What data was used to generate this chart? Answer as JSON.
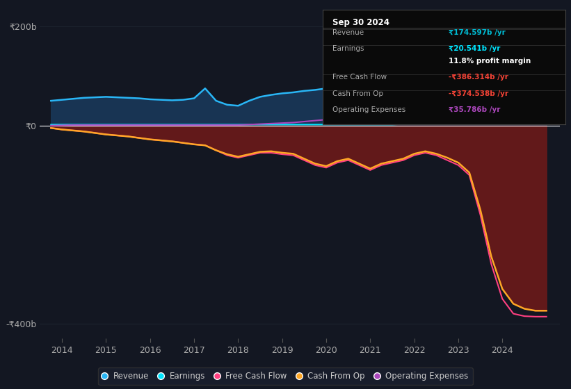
{
  "bg_color": "#131722",
  "plot_bg": "#131722",
  "grid_color": "#1e2530",
  "zero_line_color": "#ffffff",
  "title_box": {
    "date": "Sep 30 2024",
    "rows": [
      {
        "label": "Revenue",
        "value": "₹174.597b /yr",
        "value_color": "#00bcd4"
      },
      {
        "label": "Earnings",
        "value": "₹20.541b /yr",
        "value_color": "#00e5ff"
      },
      {
        "label": "",
        "value": "11.8% profit margin",
        "value_color": "#ffffff"
      },
      {
        "label": "Free Cash Flow",
        "value": "-₹386.314b /yr",
        "value_color": "#f44336"
      },
      {
        "label": "Cash From Op",
        "value": "-₹374.538b /yr",
        "value_color": "#f44336"
      },
      {
        "label": "Operating Expenses",
        "value": "₹35.786b /yr",
        "value_color": "#ab47bc"
      }
    ]
  },
  "series": {
    "years": [
      2013.75,
      2014,
      2014.25,
      2014.5,
      2014.75,
      2015,
      2015.25,
      2015.5,
      2015.75,
      2016,
      2016.25,
      2016.5,
      2016.75,
      2017,
      2017.25,
      2017.5,
      2017.75,
      2018,
      2018.25,
      2018.5,
      2018.75,
      2019,
      2019.25,
      2019.5,
      2019.75,
      2020,
      2020.25,
      2020.5,
      2020.75,
      2021,
      2021.25,
      2021.5,
      2021.75,
      2022,
      2022.25,
      2022.5,
      2022.75,
      2023,
      2023.25,
      2023.5,
      2023.75,
      2024,
      2024.25,
      2024.5,
      2024.75,
      2025
    ],
    "revenue": [
      50,
      52,
      54,
      56,
      57,
      58,
      57,
      56,
      55,
      53,
      52,
      51,
      52,
      55,
      75,
      50,
      42,
      40,
      50,
      58,
      62,
      65,
      67,
      70,
      72,
      75,
      78,
      80,
      82,
      85,
      88,
      92,
      95,
      98,
      102,
      105,
      108,
      112,
      118,
      125,
      135,
      148,
      160,
      168,
      174,
      175
    ],
    "earnings": [
      2,
      2,
      2,
      2,
      2,
      2,
      2,
      2,
      2,
      2,
      2,
      2,
      2,
      2,
      2,
      2,
      2,
      2,
      2,
      2,
      2,
      2,
      2,
      2,
      2,
      2,
      2,
      2,
      2,
      2,
      2,
      2,
      3,
      4,
      5,
      6,
      8,
      10,
      12,
      14,
      16,
      18,
      20,
      21,
      20.5,
      20
    ],
    "free_cash_flow": [
      -5,
      -8,
      -10,
      -12,
      -15,
      -18,
      -20,
      -22,
      -25,
      -28,
      -30,
      -32,
      -35,
      -38,
      -40,
      -50,
      -60,
      -65,
      -60,
      -55,
      -55,
      -58,
      -60,
      -70,
      -80,
      -85,
      -75,
      -70,
      -80,
      -90,
      -80,
      -75,
      -70,
      -60,
      -55,
      -60,
      -70,
      -80,
      -100,
      -180,
      -280,
      -350,
      -380,
      -385,
      -386,
      -386
    ],
    "cash_from_op": [
      -5,
      -8,
      -10,
      -12,
      -15,
      -18,
      -20,
      -22,
      -25,
      -28,
      -30,
      -32,
      -35,
      -38,
      -40,
      -50,
      -58,
      -63,
      -58,
      -53,
      -52,
      -55,
      -57,
      -67,
      -77,
      -82,
      -72,
      -67,
      -77,
      -87,
      -77,
      -72,
      -67,
      -57,
      -52,
      -57,
      -65,
      -75,
      -95,
      -170,
      -265,
      -330,
      -360,
      -370,
      -374,
      -374
    ],
    "op_expenses": [
      0,
      0.5,
      1,
      1,
      1,
      1,
      1,
      1,
      1,
      1,
      1,
      1,
      1,
      1,
      1,
      1,
      1,
      1,
      2,
      3,
      4,
      5,
      6,
      8,
      10,
      12,
      14,
      16,
      18,
      18,
      20,
      22,
      24,
      26,
      28,
      30,
      30,
      28,
      28,
      30,
      32,
      33,
      34,
      35,
      35.786,
      35.5
    ]
  },
  "ylim": [
    -430,
    230
  ],
  "yticks": [
    -400,
    0,
    200
  ],
  "ytick_labels": [
    "-₹400b",
    "₹0",
    "₹200b"
  ],
  "xlim": [
    2013.5,
    2025.3
  ],
  "xticks": [
    2014,
    2015,
    2016,
    2017,
    2018,
    2019,
    2020,
    2021,
    2022,
    2023,
    2024
  ],
  "colors": {
    "revenue_line": "#29b6f6",
    "revenue_fill": "#1a3a5c",
    "earnings_line": "#00e5ff",
    "fcf_line": "#ff4081",
    "cash_op_line": "#ffa726",
    "cash_op_fill_neg": "#6b1a1a",
    "op_exp_line": "#ab47bc"
  },
  "legend": [
    {
      "label": "Revenue",
      "color": "#29b6f6"
    },
    {
      "label": "Earnings",
      "color": "#00e5ff"
    },
    {
      "label": "Free Cash Flow",
      "color": "#ff4081"
    },
    {
      "label": "Cash From Op",
      "color": "#ffa726"
    },
    {
      "label": "Operating Expenses",
      "color": "#ab47bc"
    }
  ]
}
